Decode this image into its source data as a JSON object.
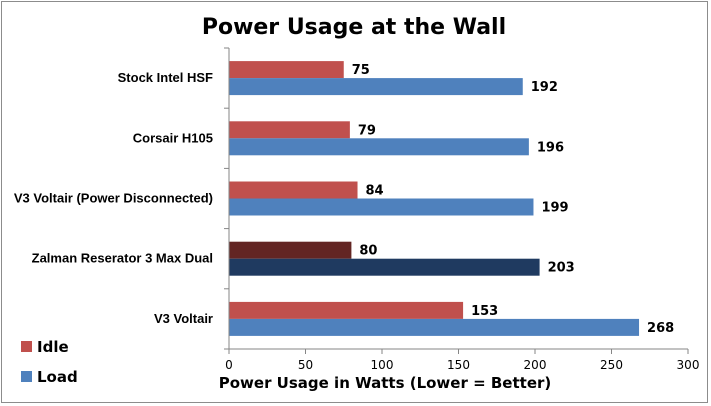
{
  "chart_data": {
    "type": "bar",
    "orientation": "horizontal",
    "title": "Power Usage at the Wall",
    "xlabel": "Power Usage in Watts (Lower = Better)",
    "ylabel": "",
    "xlim": [
      0,
      300
    ],
    "xticks": [
      "0",
      "50",
      "100",
      "150",
      "200",
      "250",
      "300"
    ],
    "categories": [
      "Stock Intel HSF",
      "Corsair H105",
      "V3 Voltair (Power Disconnected)",
      "Zalman Reserator 3  Max Dual",
      "V3 Voltair"
    ],
    "series": [
      {
        "name": "Idle",
        "color": "#c0504d",
        "values": [
          75,
          79,
          84,
          80,
          153
        ]
      },
      {
        "name": "Load",
        "color": "#4f81bd",
        "values": [
          192,
          196,
          199,
          203,
          268
        ]
      }
    ],
    "highlight": {
      "category_index": 3,
      "colors": [
        "#632523",
        "#1f3a60"
      ]
    },
    "grid": false,
    "legend_position": "bottom-left"
  }
}
